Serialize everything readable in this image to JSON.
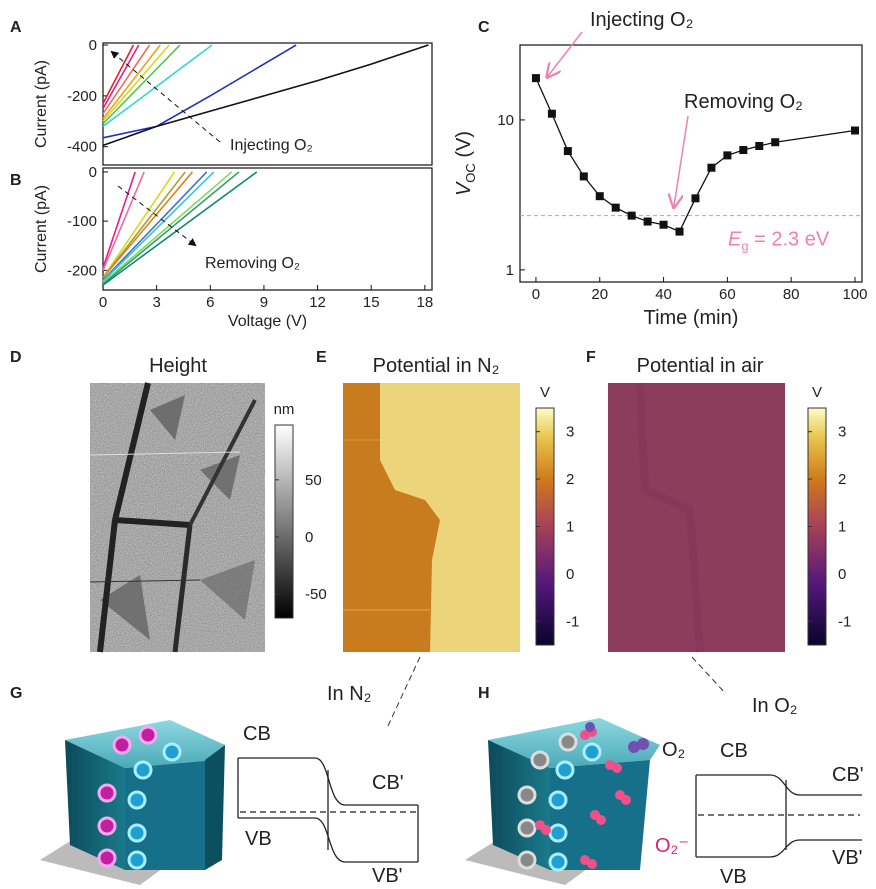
{
  "chart_data": [
    {
      "type": "line",
      "panel": "A",
      "ylabel": "Current (pA)",
      "xlim": [
        0,
        18.4
      ],
      "ylim": [
        -472,
        8
      ],
      "yticks": [
        0,
        -200,
        -400
      ],
      "series": [
        {
          "color": "#e8202a",
          "x": [
            0,
            1.7
          ],
          "values": [
            -230,
            0
          ]
        },
        {
          "color": "#e0208c",
          "x": [
            0,
            2.0
          ],
          "values": [
            -250,
            0
          ]
        },
        {
          "color": "#f06a50",
          "x": [
            0,
            2.6
          ],
          "values": [
            -270,
            0
          ]
        },
        {
          "color": "#f0a020",
          "x": [
            0,
            3.2
          ],
          "values": [
            -290,
            0
          ]
        },
        {
          "color": "#d8d820",
          "x": [
            0,
            3.7
          ],
          "values": [
            -300,
            0
          ]
        },
        {
          "color": "#50c850",
          "x": [
            0,
            4.3
          ],
          "values": [
            -310,
            0
          ]
        },
        {
          "color": "#30d8d0",
          "x": [
            0,
            6.1
          ],
          "values": [
            -320,
            0
          ]
        },
        {
          "color": "#2030c0",
          "x": [
            0,
            3,
            6,
            10.8
          ],
          "values": [
            -365,
            -320,
            -200,
            0
          ]
        },
        {
          "color": "#111111",
          "x": [
            0,
            3,
            6,
            9,
            12,
            15,
            18.2
          ],
          "values": [
            -395,
            -320,
            -260,
            -200,
            -140,
            -75,
            0
          ]
        }
      ],
      "annotation": "Injecting O₂"
    },
    {
      "type": "line",
      "panel": "B",
      "ylabel": "Current (pA)",
      "xlabel": "Voltage (V)",
      "xlim": [
        0,
        18.4
      ],
      "ylim": [
        -240,
        8
      ],
      "yticks": [
        0,
        -100,
        -200
      ],
      "xticks": [
        0,
        3,
        6,
        9,
        12,
        15,
        18
      ],
      "series": [
        {
          "color": "#e0208c",
          "x": [
            0,
            1.8
          ],
          "values": [
            -195,
            0
          ]
        },
        {
          "color": "#f06a9a",
          "x": [
            0,
            2.3
          ],
          "values": [
            -200,
            0
          ]
        },
        {
          "color": "#d8d820",
          "x": [
            0,
            4.0
          ],
          "values": [
            -215,
            0
          ]
        },
        {
          "color": "#a0a030",
          "x": [
            0,
            4.6
          ],
          "values": [
            -215,
            0
          ]
        },
        {
          "color": "#e08020",
          "x": [
            0,
            5.0
          ],
          "values": [
            -215,
            0
          ]
        },
        {
          "color": "#4070d0",
          "x": [
            0,
            5.8
          ],
          "values": [
            -220,
            0
          ]
        },
        {
          "color": "#30c8e0",
          "x": [
            0,
            6.2
          ],
          "values": [
            -222,
            0
          ]
        },
        {
          "color": "#80d860",
          "x": [
            0,
            7.2
          ],
          "values": [
            -225,
            0
          ]
        },
        {
          "color": "#30a060",
          "x": [
            0,
            7.6
          ],
          "values": [
            -228,
            0
          ]
        },
        {
          "color": "#108878",
          "x": [
            0,
            8.6
          ],
          "values": [
            -230,
            0
          ]
        }
      ],
      "annotation": "Removing O₂"
    },
    {
      "type": "scatter",
      "panel": "C",
      "ylabel": [
        "V",
        "OC",
        " (V)"
      ],
      "xlabel": "Time (min)",
      "xlim": [
        -5,
        102.2
      ],
      "ylim": [
        0.83,
        31.6
      ],
      "yscale": "log",
      "xticks": [
        0,
        20,
        40,
        60,
        80,
        100
      ],
      "yticks": [
        1,
        10
      ],
      "series": [
        {
          "color": "#111111",
          "x": [
            0,
            5,
            10,
            15,
            20,
            25,
            30,
            35,
            40,
            45,
            50,
            55,
            60,
            65,
            70,
            75,
            100
          ],
          "values": [
            19,
            11,
            6.2,
            4.2,
            3.1,
            2.6,
            2.3,
            2.1,
            2.0,
            1.8,
            3.0,
            4.8,
            5.8,
            6.3,
            6.7,
            7.1,
            8.5
          ]
        }
      ],
      "hline": {
        "value": 2.3,
        "color": "#f080b0",
        "label": [
          "E",
          "g",
          " = 2.3 eV"
        ]
      },
      "annotations": [
        "Injecting O₂",
        "Removing O₂"
      ]
    }
  ],
  "panels": {
    "D": {
      "label": "D",
      "title": "Height",
      "colorbar": {
        "unit": "nm",
        "lim": [
          -71,
          98
        ],
        "ticks": [
          50,
          0,
          -50
        ]
      }
    },
    "E": {
      "label": "E",
      "title": "Potential in N₂",
      "colorbar": {
        "unit": "V",
        "lim": [
          -1.5,
          3.5
        ],
        "ticks": [
          3,
          2,
          1,
          0,
          -1
        ]
      }
    },
    "F": {
      "label": "F",
      "title": "Potential in air",
      "colorbar": {
        "unit": "V",
        "lim": [
          -1.5,
          3.5
        ],
        "ticks": [
          3,
          2,
          1,
          0,
          -1
        ]
      }
    },
    "G": {
      "label": "G",
      "condition": "In N₂",
      "cb": "CB",
      "cb2": "CB'",
      "vb": "VB",
      "vb2": "VB'"
    },
    "H": {
      "label": "H",
      "condition": "In O₂",
      "cb": "CB",
      "cb2": "CB'",
      "vb": "VB",
      "vb2": "VB'",
      "o2": "O₂",
      "o2minus": "O₂⁻"
    }
  }
}
